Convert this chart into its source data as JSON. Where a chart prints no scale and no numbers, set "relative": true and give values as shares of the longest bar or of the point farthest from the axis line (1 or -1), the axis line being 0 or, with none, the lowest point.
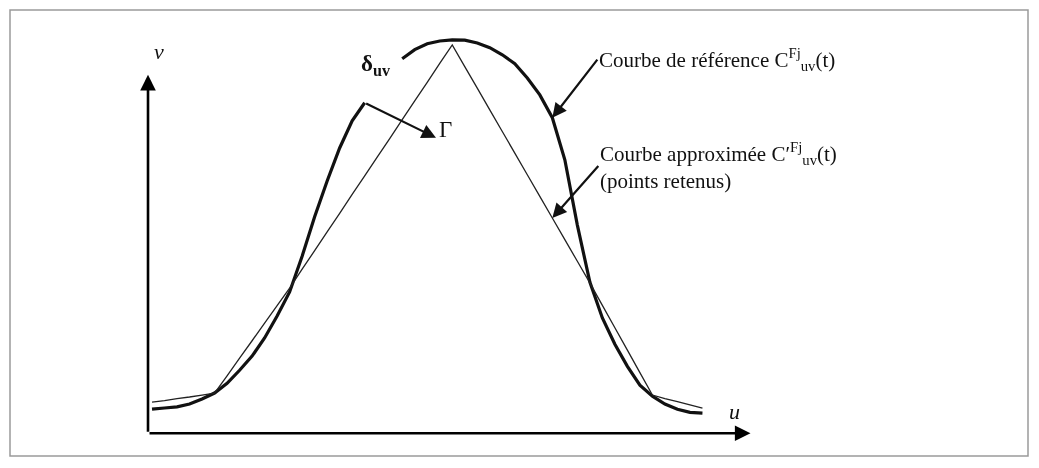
{
  "chart_data": {
    "type": "line",
    "relative": true,
    "xlabel": "u",
    "ylabel": "v",
    "line_style": "solid",
    "categories": [
      null,
      null,
      null,
      null,
      null,
      null,
      null,
      null,
      null,
      null,
      null,
      null,
      null,
      null,
      null,
      null,
      null,
      null,
      null,
      null,
      null,
      null,
      null,
      null,
      null,
      null,
      null,
      null,
      null,
      null,
      null,
      null,
      null,
      null,
      null,
      null,
      null,
      null,
      null,
      null,
      null,
      null,
      null,
      null,
      null
    ],
    "series": [
      {
        "name": "Courbe de référence C$^{Fj}$$_{uv}$(t)",
        "color": "#111111",
        "values": [
          0.061,
          0.064,
          0.067,
          0.074,
          0.087,
          0.102,
          0.127,
          0.16,
          0.196,
          0.242,
          0.298,
          0.359,
          0.45,
          0.55,
          0.641,
          0.725,
          0.794,
          0.84,
          null,
          null,
          0.952,
          0.975,
          0.99,
          0.997,
          1,
          0.999,
          0.992,
          0.98,
          0.962,
          0.939,
          0.903,
          0.86,
          0.802,
          0.695,
          0.529,
          0.384,
          0.293,
          0.226,
          0.17,
          0.122,
          0.094,
          0.074,
          0.061,
          0.053,
          0.051
        ]
      },
      {
        "name": "Courbe approximée C′$^{Fj}$$_{uv}$(t)\n(points retenus)",
        "color": "#222222",
        "values": [
          0.079,
          0.083,
          0.088,
          0.092,
          0.097,
          0.102,
          0.146,
          0.191,
          0.235,
          0.28,
          0.324,
          0.369,
          0.417,
          0.464,
          0.512,
          0.559,
          0.607,
          0.654,
          0.702,
          0.749,
          0.797,
          0.845,
          0.892,
          0.94,
          0.987,
          0.932,
          0.877,
          0.822,
          0.767,
          0.712,
          0.657,
          0.602,
          0.547,
          0.492,
          0.437,
          0.382,
          0.325,
          0.268,
          0.211,
          0.154,
          0.097,
          0.088,
          0.08,
          0.072,
          0.064
        ]
      }
    ],
    "annotations": [
      "δ$_{uv}$",
      "Γ"
    ]
  }
}
